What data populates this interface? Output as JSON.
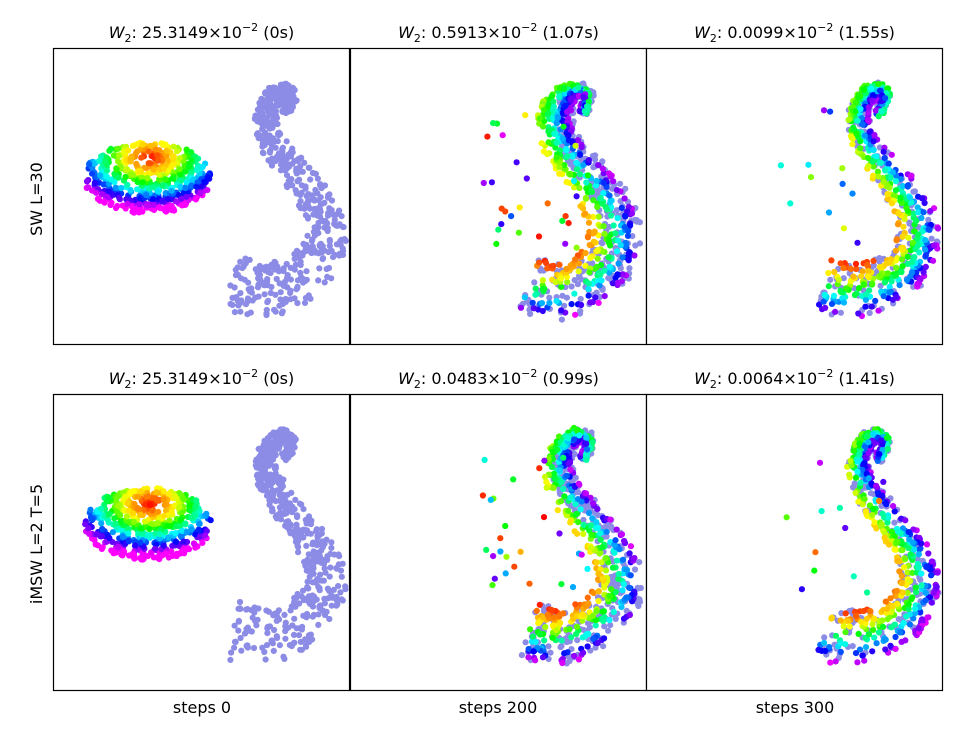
{
  "figure": {
    "row_labels": [
      "SW L=30",
      "iMSW L=2 T=5"
    ],
    "column_labels": [
      "steps 0",
      "steps 200",
      "steps 300"
    ]
  },
  "colors": {
    "target": "#8c8ce6",
    "rainbow": [
      "#ff00ff",
      "#0000ff",
      "#00ffff",
      "#00ff00",
      "#ffff00",
      "#ff8000",
      "#ff0000"
    ]
  },
  "chart_data": [
    {
      "type": "scatter",
      "row": 0,
      "col": 0,
      "title_prefix": "W",
      "title_sub": "2",
      "title_mid": ": 25.3149×10",
      "title_sup": "−2",
      "title_suffix": " (0s)",
      "w2": 0.253149,
      "time_s": 0,
      "step": 0,
      "grid": false,
      "state": "initial ellipse; target spiral"
    },
    {
      "type": "scatter",
      "row": 0,
      "col": 1,
      "title_prefix": "W",
      "title_sub": "2",
      "title_mid": ": 0.5913×10",
      "title_sup": "−2",
      "title_suffix": " (1.07s)",
      "w2": 0.005913,
      "time_s": 1.07,
      "step": 200,
      "grid": false,
      "state": "partially transported"
    },
    {
      "type": "scatter",
      "row": 0,
      "col": 2,
      "title_prefix": "W",
      "title_sub": "2",
      "title_mid": ": 0.0099×10",
      "title_sup": "−2",
      "title_suffix": " (1.55s)",
      "w2": 9.9e-05,
      "time_s": 1.55,
      "step": 300,
      "grid": false,
      "state": "near target"
    },
    {
      "type": "scatter",
      "row": 1,
      "col": 0,
      "title_prefix": "W",
      "title_sub": "2",
      "title_mid": ": 25.3149×10",
      "title_sup": "−2",
      "title_suffix": " (0s)",
      "w2": 0.253149,
      "time_s": 0,
      "step": 0,
      "grid": false,
      "state": "initial ellipse; target spiral"
    },
    {
      "type": "scatter",
      "row": 1,
      "col": 1,
      "title_prefix": "W",
      "title_sub": "2",
      "title_mid": ": 0.0483×10",
      "title_sup": "−2",
      "title_suffix": " (0.99s)",
      "w2": 0.000483,
      "time_s": 0.99,
      "step": 200,
      "grid": false,
      "state": "mostly transported"
    },
    {
      "type": "scatter",
      "row": 1,
      "col": 2,
      "title_prefix": "W",
      "title_sub": "2",
      "title_mid": ": 0.0064×10",
      "title_sup": "−2",
      "title_suffix": " (1.41s)",
      "w2": 6.4e-05,
      "time_s": 1.41,
      "step": 300,
      "grid": false,
      "state": "near target"
    }
  ]
}
